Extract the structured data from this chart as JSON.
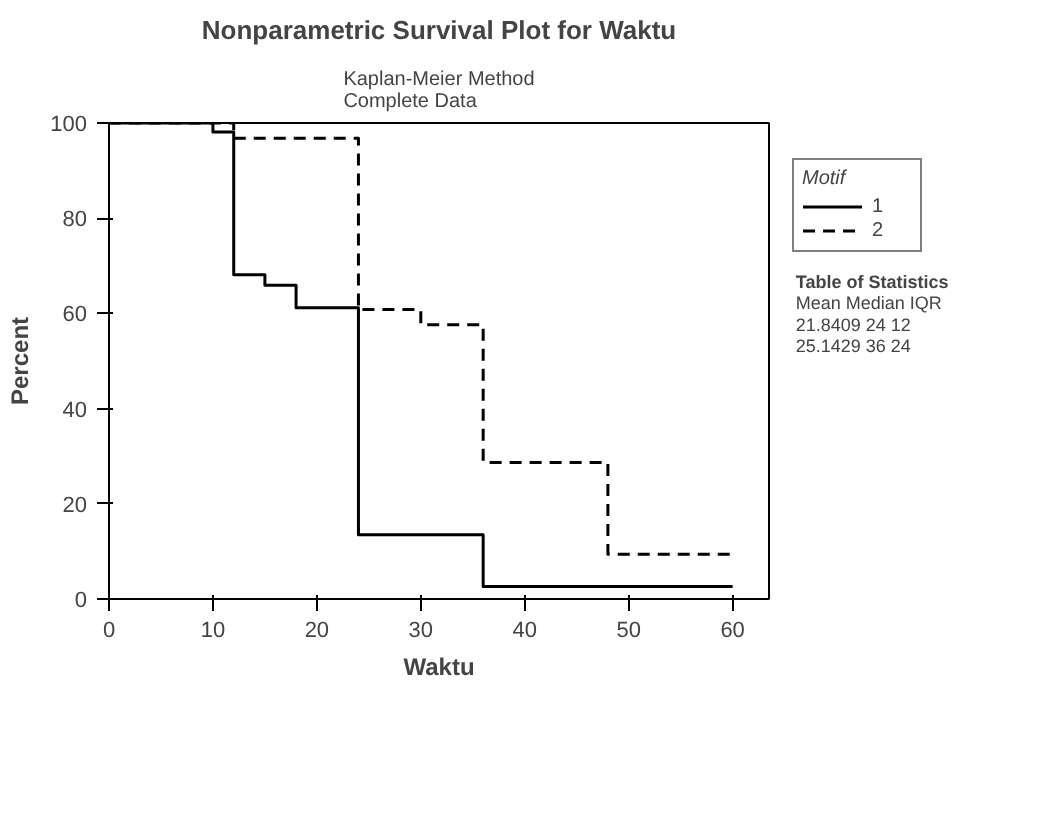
{
  "chart_data": {
    "type": "step",
    "title": "Nonparametric Survival Plot for Waktu",
    "subtitle": "Kaplan-Meier Method\nComplete Data",
    "xlabel": "Waktu",
    "ylabel": "Percent",
    "legend_title": "Motif",
    "legend": "right",
    "grid": false,
    "xlim": [
      0,
      63.5
    ],
    "ylim": [
      0,
      100
    ],
    "xticks": [
      0,
      10,
      20,
      30,
      40,
      50,
      60
    ],
    "yticks": [
      0,
      20,
      40,
      60,
      80,
      100
    ],
    "series": [
      {
        "name": "1",
        "color": "#000000",
        "line_style": "solid",
        "x": [
          0,
          10,
          12,
          15,
          18,
          24,
          36,
          60
        ],
        "values": [
          100,
          98.1,
          68.1,
          65.9,
          61.2,
          13.5,
          2.6,
          2.6
        ]
      },
      {
        "name": "2",
        "color": "#000000",
        "line_style": "dashed",
        "x": [
          0,
          12,
          24,
          30,
          36,
          48,
          60
        ],
        "values": [
          100,
          96.8,
          60.8,
          57.6,
          28.7,
          9.4,
          9.4
        ]
      }
    ],
    "annotations": [
      "Table of Statistics",
      "Mean  Median  IQR",
      "21.8409     24     12",
      "25.1429     36     24"
    ]
  }
}
